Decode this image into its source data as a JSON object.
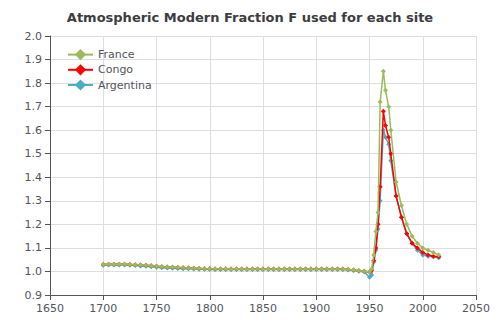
{
  "chart_data": {
    "type": "line",
    "title": "Atmospheric Modern Fraction F used for each site",
    "x": [
      1700,
      1705,
      1710,
      1715,
      1720,
      1725,
      1730,
      1735,
      1740,
      1745,
      1750,
      1755,
      1760,
      1765,
      1770,
      1775,
      1780,
      1785,
      1790,
      1795,
      1800,
      1805,
      1810,
      1815,
      1820,
      1825,
      1830,
      1835,
      1840,
      1845,
      1850,
      1855,
      1860,
      1865,
      1870,
      1875,
      1880,
      1885,
      1890,
      1895,
      1900,
      1905,
      1910,
      1915,
      1920,
      1925,
      1930,
      1935,
      1940,
      1945,
      1950,
      1952,
      1954,
      1956,
      1958,
      1960,
      1963,
      1965,
      1968,
      1970,
      1975,
      1980,
      1985,
      1990,
      1995,
      2000,
      2005,
      2010,
      2015
    ],
    "series": [
      {
        "name": "France",
        "color": "#9BBB59",
        "values": [
          1.03,
          1.031,
          1.031,
          1.031,
          1.031,
          1.03,
          1.029,
          1.027,
          1.026,
          1.024,
          1.022,
          1.02,
          1.019,
          1.018,
          1.017,
          1.016,
          1.015,
          1.014,
          1.013,
          1.012,
          1.011,
          1.01,
          1.01,
          1.01,
          1.01,
          1.01,
          1.01,
          1.01,
          1.01,
          1.01,
          1.01,
          1.01,
          1.01,
          1.01,
          1.01,
          1.01,
          1.01,
          1.01,
          1.01,
          1.01,
          1.01,
          1.01,
          1.01,
          1.01,
          1.01,
          1.01,
          1.008,
          1.006,
          1.003,
          1.001,
          0.999,
          1.01,
          1.07,
          1.17,
          1.25,
          1.72,
          1.85,
          1.77,
          1.7,
          1.6,
          1.38,
          1.28,
          1.2,
          1.15,
          1.12,
          1.1,
          1.09,
          1.08,
          1.07
        ]
      },
      {
        "name": "Congo",
        "color": "#FF0000",
        "values": [
          1.03,
          1.031,
          1.031,
          1.031,
          1.031,
          1.03,
          1.029,
          1.027,
          1.026,
          1.024,
          1.022,
          1.02,
          1.019,
          1.018,
          1.017,
          1.016,
          1.015,
          1.014,
          1.013,
          1.012,
          1.011,
          1.01,
          1.01,
          1.01,
          1.01,
          1.01,
          1.01,
          1.01,
          1.01,
          1.01,
          1.01,
          1.01,
          1.01,
          1.01,
          1.01,
          1.01,
          1.01,
          1.01,
          1.01,
          1.01,
          1.01,
          1.01,
          1.01,
          1.01,
          1.01,
          1.01,
          1.008,
          1.006,
          1.003,
          1.001,
          0.998,
          1.005,
          1.045,
          1.1,
          1.2,
          1.36,
          1.68,
          1.62,
          1.57,
          1.5,
          1.32,
          1.23,
          1.16,
          1.12,
          1.1,
          1.08,
          1.07,
          1.065,
          1.062
        ]
      },
      {
        "name": "Argentina",
        "color": "#4BACC6",
        "values": [
          1.026,
          1.027,
          1.027,
          1.027,
          1.027,
          1.026,
          1.025,
          1.023,
          1.022,
          1.02,
          1.018,
          1.016,
          1.015,
          1.014,
          1.013,
          1.012,
          1.011,
          1.01,
          1.009,
          1.009,
          1.008,
          1.008,
          1.008,
          1.008,
          1.008,
          1.008,
          1.008,
          1.008,
          1.008,
          1.008,
          1.008,
          1.008,
          1.008,
          1.008,
          1.008,
          1.008,
          1.008,
          1.008,
          1.008,
          1.008,
          1.008,
          1.008,
          1.008,
          1.008,
          1.008,
          1.008,
          1.006,
          1.004,
          1.001,
          0.999,
          0.975,
          0.985,
          1.04,
          1.09,
          1.18,
          1.3,
          1.6,
          1.57,
          1.54,
          1.47,
          1.32,
          1.23,
          1.16,
          1.12,
          1.09,
          1.07,
          1.065,
          1.062,
          1.058
        ]
      }
    ],
    "xlim": [
      1650,
      2050
    ],
    "ylim": [
      0.9,
      2.0
    ],
    "xticks": [
      1650,
      1700,
      1750,
      1800,
      1850,
      1900,
      1950,
      2000,
      2050
    ],
    "yticks": [
      0.9,
      {
        "value": 1,
        "label": "1.0"
      },
      1.1,
      1.2,
      1.3,
      1.4,
      1.5,
      1.6,
      1.7,
      1.8,
      1.9,
      {
        "value": 2,
        "label": "2.0"
      }
    ],
    "grid": true,
    "legend": "upper left",
    "marker": "diamond"
  }
}
